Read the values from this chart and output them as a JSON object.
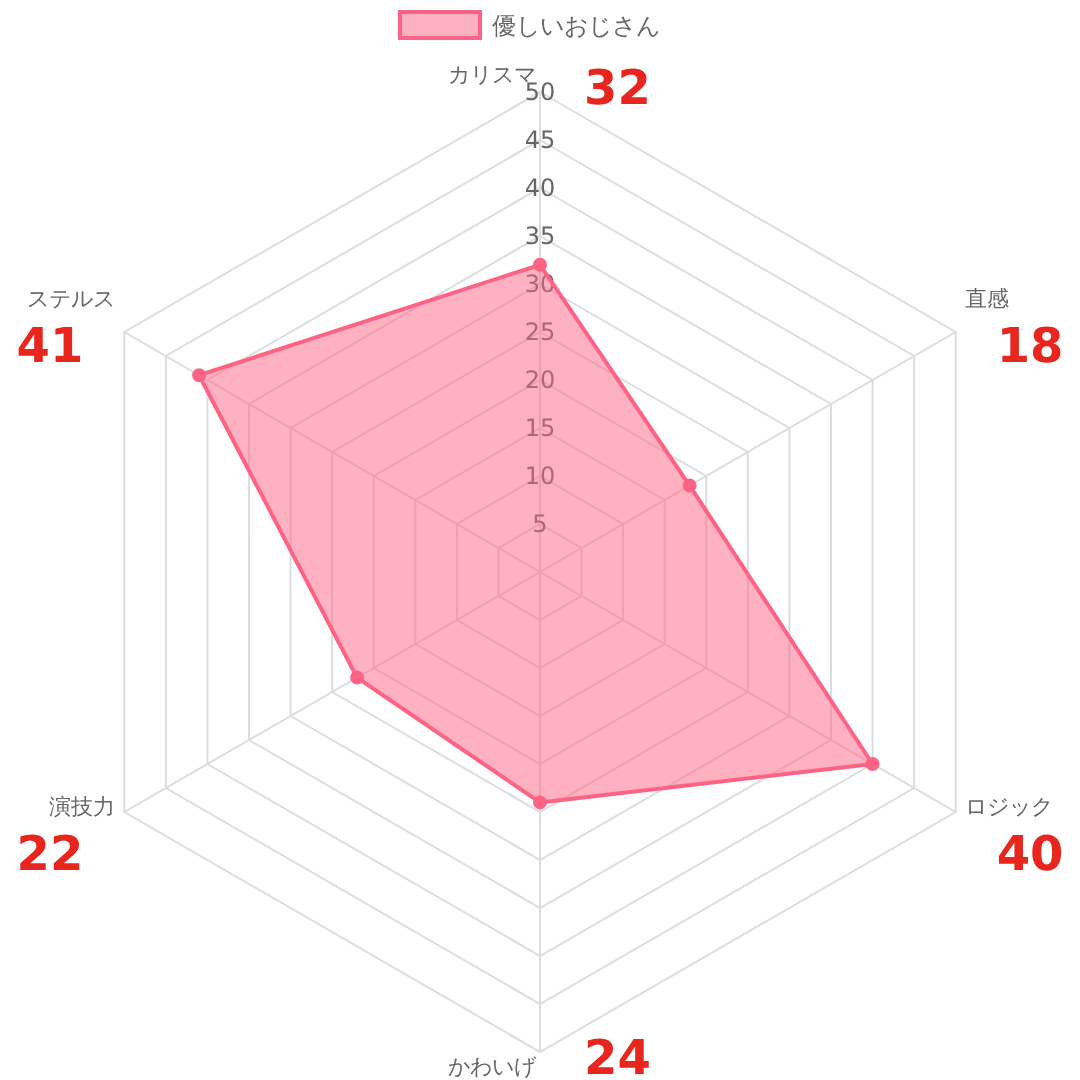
{
  "chart_data": {
    "type": "radar",
    "categories": [
      "カリスマ",
      "直感",
      "ロジック",
      "かわいげ",
      "演技力",
      "ステルス"
    ],
    "series": [
      {
        "name": "優しいおじさん",
        "color": "#ff6384",
        "values": [
          32,
          18,
          40,
          24,
          22,
          41
        ]
      }
    ],
    "ylim": [
      0,
      50
    ],
    "yticks": [
      5,
      10,
      15,
      20,
      25,
      30,
      35,
      40,
      45,
      50
    ],
    "grid": true,
    "legend": "top",
    "marker": "circle",
    "annotations": [
      "32",
      "18",
      "40",
      "24",
      "22",
      "41"
    ]
  }
}
